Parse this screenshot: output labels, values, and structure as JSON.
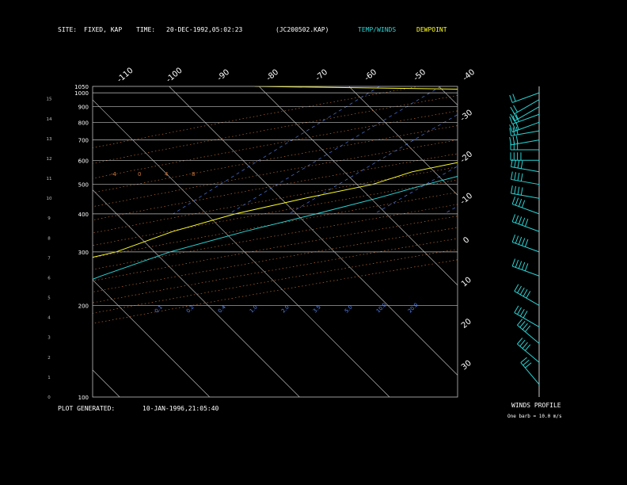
{
  "header": {
    "site_label": "SITE:",
    "site_value": "FIXED, KAP",
    "time_label": "TIME:",
    "time_value": "20-DEC-1992,05:02:23",
    "file_id": "(JC200502.KAP)",
    "temp_legend": "TEMP/WINDS",
    "dew_legend": "DEWPOINT"
  },
  "footer": {
    "generated_label": "PLOT GENERATED:",
    "generated_value": "10-JAN-1996,21:05:40"
  },
  "wind_panel": {
    "title": "WINDS PROFILE",
    "note": "One barb = 10.0 m/s"
  },
  "colors": {
    "temperature": "#29d6d6",
    "dewpoint": "#ffff2a",
    "isobar": "#bfbfbf",
    "isotherm": "#cfcfcf",
    "dry_adiabat": "#d07a3a",
    "mixing_ratio": "#5a8cff",
    "moist_adiabat": "#7ad0ff"
  },
  "chart_data": {
    "type": "line",
    "pressure_levels": [
      1050,
      1000,
      900,
      800,
      700,
      600,
      500,
      400,
      300,
      200,
      100
    ],
    "pressure_labels": [
      "1050",
      "1000",
      "900",
      "800",
      "700",
      "600",
      "500",
      "400",
      "300",
      "200",
      "100"
    ],
    "height_km_labels": [
      "0",
      "1",
      "2",
      "3",
      "4",
      "5",
      "6",
      "7",
      "8",
      "9",
      "10",
      "11",
      "12",
      "13",
      "14",
      "15"
    ],
    "isotherm_labels_top": [
      "-110",
      "-100",
      "-90",
      "-80",
      "-70",
      "-60",
      "-50",
      "-40"
    ],
    "isotherm_labels_right": [
      "-30",
      "-20",
      "-10",
      "0",
      "10",
      "20",
      "30"
    ],
    "dry_adiabat_labels": [
      "-4",
      "0",
      "4",
      "8"
    ],
    "mixing_ratio_labels": [
      "0.1",
      "0.2",
      "0.4",
      "1.0",
      "2.0",
      "3.5",
      "5.0",
      "10.0",
      "20.0"
    ],
    "y_scale": "log",
    "ylim": [
      1050,
      100
    ],
    "series": [
      {
        "name": "TEMP/WINDS",
        "pressure": [
          1050,
          1000,
          950,
          900,
          850,
          800,
          750,
          700,
          650,
          600,
          550,
          500,
          450,
          400,
          350,
          300,
          250,
          200,
          170,
          150,
          130,
          115,
          100
        ],
        "temperature": [
          8,
          6,
          1,
          -2,
          -4,
          -5,
          -7,
          -11,
          -14,
          -17,
          -21,
          -25,
          -29,
          -34,
          -40,
          -46,
          -51,
          -56,
          -57,
          -58,
          -60,
          -62,
          -62
        ]
      },
      {
        "name": "DEWPOINT",
        "pressure": [
          1050,
          1000,
          950,
          900,
          850,
          800,
          750,
          700,
          650,
          600,
          550,
          500,
          450,
          400,
          350,
          300,
          250,
          200,
          170,
          150,
          130,
          115,
          100
        ],
        "temperature": [
          -55,
          -2,
          -5,
          -7,
          -10,
          -12,
          -14,
          -17,
          -20,
          -23,
          -28,
          -31,
          -37,
          -43,
          -48,
          -52,
          -61,
          -69,
          -76,
          -79,
          -82,
          -84,
          -84
        ]
      }
    ],
    "winds": {
      "pressure": [
        1000,
        950,
        900,
        850,
        800,
        750,
        700,
        650,
        600,
        550,
        500,
        450,
        400,
        350,
        300,
        250,
        200,
        170,
        150,
        130,
        110
      ],
      "direction_deg": [
        250,
        240,
        240,
        250,
        250,
        260,
        260,
        270,
        270,
        280,
        280,
        280,
        290,
        290,
        290,
        290,
        300,
        300,
        310,
        310,
        320
      ],
      "speed_ms": [
        15,
        20,
        20,
        25,
        25,
        30,
        30,
        30,
        35,
        35,
        40,
        40,
        40,
        45,
        45,
        45,
        45,
        40,
        40,
        35,
        30
      ]
    }
  }
}
